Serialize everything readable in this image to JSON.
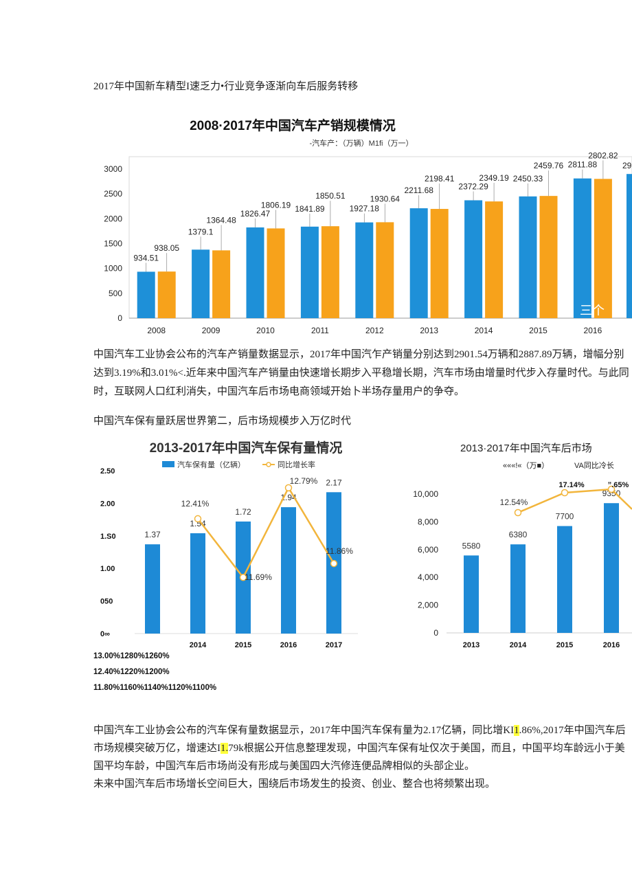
{
  "heading1": "2017年中国新车精型I速乏力•行业竞争逐渐向车后服务转移",
  "chart1": {
    "title": "2008·2017年中国汽车产销规模情况",
    "legend_partial": "-汽车产：（万辆）M1fi（万一）",
    "watermark": "三个",
    "chart_data": {
      "type": "bar",
      "title": "2008·2017年中国汽车产销规模情况",
      "categories": [
        "2008",
        "2009",
        "2010",
        "2011",
        "2012",
        "2013",
        "2014",
        "2015",
        "2016"
      ],
      "series": [
        {
          "values": [
            934.51,
            1379.1,
            1826.47,
            1841.89,
            1927.18,
            2211.68,
            2372.29,
            2450.33,
            2811.88
          ],
          "color": "#1e90d8"
        },
        {
          "values": [
            938.05,
            1364.48,
            1806.19,
            1850.51,
            1930.64,
            2198.41,
            2349.19,
            2459.76,
            2802.82
          ],
          "color": "#f7a21b"
        }
      ],
      "value_labels_1": [
        "934.51",
        "1379.1",
        "1826.47",
        "1841.89",
        "1927.18",
        "2211.68",
        "2372.29",
        "2450.33",
        "2811.88"
      ],
      "value_labels_2": [
        "938.05",
        "1364.48",
        "1806.19",
        "1850.51",
        "1930.64",
        "2198.41",
        "2349.19",
        "2459.76",
        "2802.82"
      ],
      "clipped_label": "29",
      "yticks": [
        "0",
        "500",
        "1000",
        "1500",
        "2000",
        "2500",
        "3000"
      ],
      "ylim": [
        0,
        3250
      ],
      "grid": false
    }
  },
  "para1": "中国汽车工业协会公布的汽车产销量数据显示，2017年中国汽乍产销量分别达到2901.54万辆和2887.89万辆，增幅分别达到3.19%和3.01%<.近年来中国汽车产销量由快速增长期步入平稳增长期，汽车市场由增量时代步入存量时代。与此同时，互联网人口红利消失，中国汽车后市场电商领域开始卜半场存量用户的争夺。",
  "heading2": "中国汽车保有量跃居世界第二，后市场规模步入万亿时代",
  "chart2": {
    "title": "2013-2017年中国汽车保有量情况",
    "legend_bar": "汽车保有量（亿辆）",
    "legend_line": "同比增长率",
    "yticks": [
      "2.50",
      "2.00",
      "1.S0",
      "1.00",
      "050",
      "0∞"
    ],
    "chart_data": {
      "type": "bar",
      "title": "2013-2017年中国汽车保有量情况",
      "categories": [
        "",
        "2014",
        "2015",
        "2016",
        "2017"
      ],
      "series": [
        {
          "name": "汽车保有量（亿辆）",
          "values": [
            1.37,
            1.54,
            1.72,
            1.94,
            2.17
          ],
          "color": "#1e8ad6"
        },
        {
          "name": "同比增长率",
          "values": [
            null,
            12.41,
            11.69,
            12.79,
            11.86
          ],
          "color": "#f2b53c"
        }
      ],
      "bar_labels": [
        "1.37",
        "1.54",
        "1.72",
        "1.94",
        "2.17"
      ],
      "line_labels": [
        "12.41%",
        "11.69%",
        "12.79%",
        "11.86%"
      ],
      "ylim": [
        0,
        2.5
      ]
    }
  },
  "pct_lines": [
    "13.00%1280%1260%",
    "12.40%1220%1200%",
    "11.80%1160%1140%1120%1100%"
  ],
  "chart3": {
    "title": "2013·2017年中国汽车后市场",
    "legend_left": "«««!«（万■）",
    "legend_right": "VA同比冷长",
    "yticks": [
      "10,000",
      "8,000",
      "6,000",
      "4,000",
      "2,000",
      "0"
    ],
    "chart_data": {
      "type": "bar",
      "title": "2013·2017年中国汽车后市场",
      "categories": [
        "2013",
        "2014",
        "2015",
        "2016"
      ],
      "series": [
        {
          "values": [
            5580,
            6380,
            7700,
            9350
          ],
          "color": "#1e8ad6"
        },
        {
          "values": [
            null,
            12.54,
            17.14,
            null
          ],
          "color": "#f2b53c"
        }
      ],
      "bar_labels": [
        "5580",
        "6380",
        "7700",
        "9350"
      ],
      "line_labels": [
        "12.54%",
        "17.14%",
        "”.65%"
      ],
      "ylim": [
        0,
        10500
      ]
    }
  },
  "para2_parts": {
    "a": "中国汽车工业协会公布的汽车保有量数据显示，2017年中国汽车保有量为2.17亿辆，同比增KI",
    "a_hl": "1",
    "b": ".86%,2017年中国汽车后市场规模突破万亿，增速达I",
    "b_hl": "1.",
    "c": "79k根据公开信息整理发现，中国汽车保有址仅次于美国，而且，中国平均车龄远小于美国平均车龄，中国汽车后市场尚没有形成与美国四大汽修连便品牌相似的头部企业。"
  },
  "para3": "未来中国汽车后市场增长空间巨大，围绕后市场发生的投资、创业、整合也将频繁出现。"
}
